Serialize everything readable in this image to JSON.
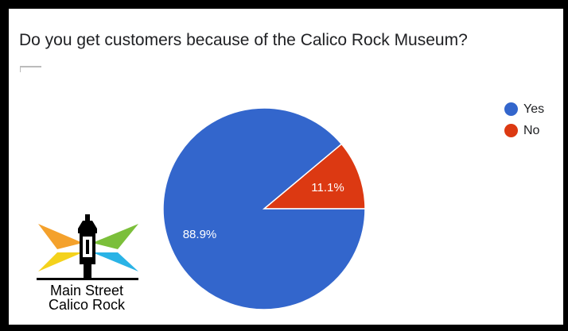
{
  "chart_data": {
    "type": "pie",
    "title": "Do you get customers because of the Calico Rock Museum?",
    "slices": [
      {
        "label": "Yes",
        "value": 88.9,
        "display": "88.9%",
        "color": "#3366cc"
      },
      {
        "label": "No",
        "value": 11.1,
        "display": "11.1%",
        "color": "#dc3912"
      }
    ],
    "legend_position": "right"
  },
  "logo": {
    "line1": "Main Street",
    "line2": "Calico Rock"
  }
}
